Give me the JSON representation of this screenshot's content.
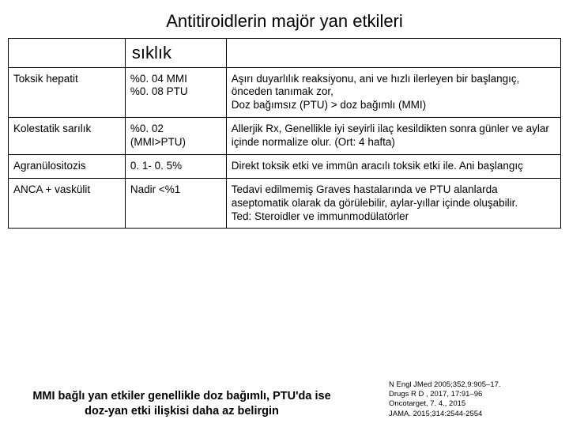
{
  "title": "Antitiroidlerin majör yan etkileri",
  "header": {
    "col1": "",
    "col2": "sıklık",
    "col3": ""
  },
  "rows": [
    {
      "name": "Toksik hepatit",
      "freq": "%0. 04  MMI\n%0. 08 PTU",
      "desc": "Aşırı duyarlılık reaksiyonu, ani ve hızlı ilerleyen bir başlangıç, önceden tanımak zor,\nDoz bağımsız (PTU) > doz bağımlı (MMI)"
    },
    {
      "name": "Kolestatik  sarılık",
      "freq": "%0. 02\n(MMI>PTU)",
      "desc": "Allerjik  Rx, Genellikle  iyi seyirli   ilaç kesildikten  sonra günler ve aylar içinde normalize olur. (Ort: 4 hafta)"
    },
    {
      "name": "Agranülositozis",
      "freq": "0. 1- 0. 5%",
      "desc": "Direkt toksik etki ve immün aracılı toksik etki ile. Ani başlangıç"
    },
    {
      "name": "ANCA + vaskülit",
      "freq": "Nadir <%1",
      "desc": "Tedavi edilmemiş Graves hastalarında ve PTU alanlarda aseptomatik olarak da görülebilir, aylar-yıllar içinde oluşabilir.\nTed: Steroidler  ve immunmodülatörler"
    }
  ],
  "footer_left": "MMI  bağlı yan etkiler genellikle  doz bağımlı, PTU'da ise doz-yan etki ilişkisi daha az belirgin",
  "footer_right": "N Engl JMed 2005;352,9:905–17.\nDrugs R D , 2017, 17:91–96\nOncotarget, 7. 4., 2015\nJAMA. 2015;314:2544-2554"
}
